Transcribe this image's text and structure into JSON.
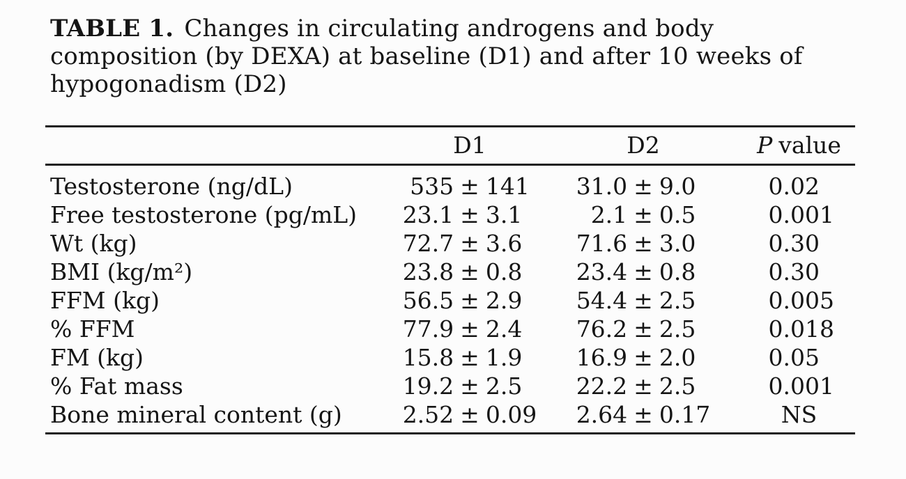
{
  "title": {
    "label": "TABLE 1.",
    "line1": "Changes in circulating androgens and body",
    "line2": "composition (by DEXA) at baseline (D1) and after 10 weeks of",
    "line3": "hypogonadism (D2)"
  },
  "pm": "±",
  "columns": {
    "d1": "D1",
    "d2": "D2",
    "p_symbol": "P",
    "p_rest": "value"
  },
  "rows": [
    {
      "label": "Testosterone (ng/dL)",
      "d1v": "535",
      "d1e": "141",
      "d2v": "31.0",
      "d2e": "9.0",
      "p": "0.02"
    },
    {
      "label": "Free testosterone (pg/mL)",
      "d1v": "23.1",
      "d1e": "3.1",
      "d2v": "2.1",
      "d2e": "0.5",
      "p": "0.001"
    },
    {
      "label": "Wt (kg)",
      "d1v": "72.7",
      "d1e": "3.6",
      "d2v": "71.6",
      "d2e": "3.0",
      "p": "0.30"
    },
    {
      "label": "BMI (kg/m²)",
      "d1v": "23.8",
      "d1e": "0.8",
      "d2v": "23.4",
      "d2e": "0.8",
      "p": "0.30"
    },
    {
      "label": "FFM (kg)",
      "d1v": "56.5",
      "d1e": "2.9",
      "d2v": "54.4",
      "d2e": "2.5",
      "p": "0.005"
    },
    {
      "label": "% FFM",
      "d1v": "77.9",
      "d1e": "2.4",
      "d2v": "76.2",
      "d2e": "2.5",
      "p": "0.018"
    },
    {
      "label": "FM (kg)",
      "d1v": "15.8",
      "d1e": "1.9",
      "d2v": "16.9",
      "d2e": "2.0",
      "p": "0.05"
    },
    {
      "label": "% Fat mass",
      "d1v": "19.2",
      "d1e": "2.5",
      "d2v": "22.2",
      "d2e": "2.5",
      "p": "0.001"
    },
    {
      "label": "Bone mineral content (g)",
      "d1v": "2.52",
      "d1e": "0.09",
      "d2v": "2.64",
      "d2e": "0.17",
      "p": "NS"
    }
  ],
  "colors": {
    "text": "#151515",
    "rule": "#1b1b1b",
    "background": "#fcfcfc"
  }
}
